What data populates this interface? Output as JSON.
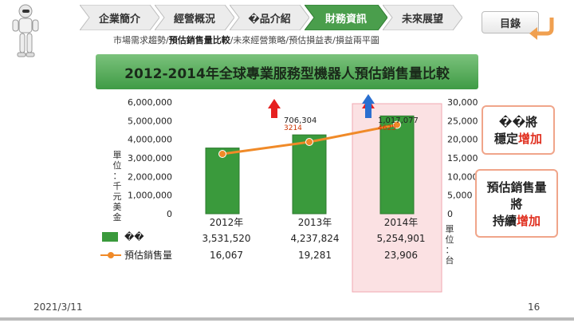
{
  "nav": {
    "items": [
      "企業簡介",
      "經營概況",
      "�品介紹",
      "財務資訊",
      "未來展望"
    ],
    "active_index": 3,
    "toc_label": "目錄"
  },
  "breadcrumb": {
    "prefix": "市場需求趨勢/",
    "current": "預估銷售量比較",
    "suffix": "/未來經營策略/預估損益表/損益兩平圖"
  },
  "title": "2012-2014年全球專業服務型機器人預估銷售量比較",
  "chart_data": {
    "type": "bar",
    "categories": [
      "2012年",
      "2013年",
      "2014年"
    ],
    "series": [
      {
        "name": "��",
        "type": "bar",
        "axis": "left",
        "values": [
          3531520,
          4237824,
          5254901
        ],
        "color": "#3a9a3c"
      },
      {
        "name": "預估銷售量",
        "type": "line",
        "axis": "right",
        "values": [
          16067,
          19281,
          23906
        ],
        "color": "#f08a28"
      }
    ],
    "left_axis": {
      "ticks": [
        "6,000,000",
        "5,000,000",
        "4,000,000",
        "3,000,000",
        "2,000,000",
        "1,000,000",
        "0"
      ],
      "ylim": [
        0,
        6000000
      ],
      "unit": "單位：千元美金"
    },
    "right_axis": {
      "ticks": [
        "30,000",
        "25,000",
        "20,000",
        "15,000",
        "10,000",
        "5,000",
        "0"
      ],
      "ylim": [
        0,
        30000
      ],
      "unit": "單位：台"
    },
    "annotations": [
      {
        "label": "706,304",
        "sub": "3214"
      },
      {
        "label": "1,017,077",
        "sub": "4625"
      }
    ]
  },
  "table": {
    "rows": [
      [
        "2012年",
        "2013年",
        "2014年"
      ],
      [
        "3,531,520",
        "4,237,824",
        "5,254,901"
      ],
      [
        "16,067",
        "19,281",
        "23,906"
      ]
    ]
  },
  "callouts": {
    "top": {
      "line1": "��將",
      "line2_dark": "穩定",
      "line2_red": "增加"
    },
    "bottom": {
      "line1": "預估銷售量",
      "line2": "將",
      "line3_dark": "持續",
      "line3_red": "增加"
    }
  },
  "footer": {
    "date": "2021/3/11",
    "page": "16"
  },
  "colors": {
    "bar": "#3a9a3c",
    "line": "#f08a28",
    "accent_red": "#e03020"
  }
}
